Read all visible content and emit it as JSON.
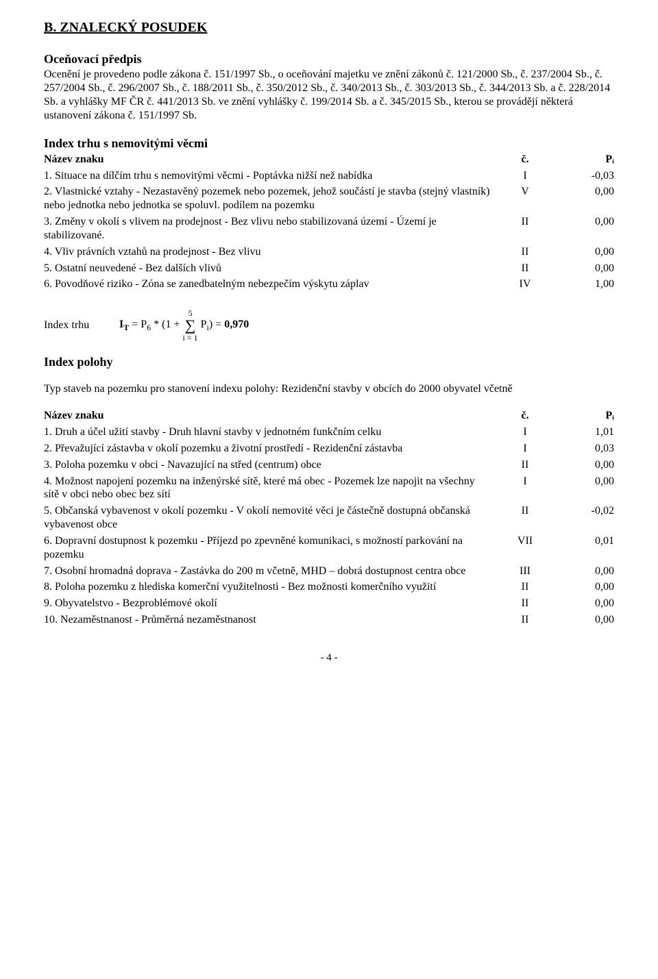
{
  "section_heading": "B. ZNALECKÝ POSUDEK",
  "pricing": {
    "title": "Oceňovací předpis",
    "text": "Ocenění je provedeno podle zákona č. 151/1997 Sb., o oceňování majetku ve znění zákonů č. 121/2000 Sb., č. 237/2004 Sb., č. 257/2004 Sb., č. 296/2007 Sb., č. 188/2011 Sb., č. 350/2012 Sb., č. 340/2013 Sb., č. 303/2013 Sb., č. 344/2013 Sb. a č. 228/2014 Sb. a vyhlášky MF ČR č. 441/2013 Sb. ve znění vyhlášky č. 199/2014 Sb. a č. 345/2015 Sb., kterou se provádějí některá ustanovení zákona č. 151/1997 Sb."
  },
  "index_trhu": {
    "title": "Index trhu s nemovitými věcmi",
    "header": {
      "name": "Název znaku",
      "col_c": "č.",
      "col_p": "Pᵢ"
    },
    "rows": [
      {
        "num": "1.",
        "text": "Situace na dílčím trhu s nemovitými věcmi - Poptávka nižší než nabídka",
        "indent": "nabídka",
        "c": "I",
        "p": "-0,03"
      },
      {
        "num": "2.",
        "text": "Vlastnické vztahy - Nezastavěný pozemek nebo pozemek, jehož součástí je stavba (stejný vlastník) nebo jednotka nebo jednotka se spoluvl. podílem na pozemku",
        "c": "V",
        "p": "0,00"
      },
      {
        "num": "3.",
        "text": "Změny v okolí s vlivem na prodejnost - Bez vlivu nebo stabilizovaná území - Území je stabilizované.",
        "c": "II",
        "p": "0,00"
      },
      {
        "num": "4.",
        "text": "Vliv právních vztahů na prodejnost - Bez vlivu",
        "c": "II",
        "p": "0,00"
      },
      {
        "num": "5.",
        "text": "Ostatní neuvedené - Bez dalších vlivů",
        "c": "II",
        "p": "0,00"
      },
      {
        "num": "6.",
        "text": "Povodňové riziko - Zóna se zanedbatelným nebezpečím výskytu záplav",
        "c": "IV",
        "p": "1,00"
      }
    ]
  },
  "formula": {
    "label": "Index trhu",
    "prefix": "Iᴛ = P₆ * (1 + ",
    "sum_top": "5",
    "sum_bot": "i = 1",
    "suffix_before_bold": " Pᵢ) = ",
    "result": "0,970"
  },
  "index_polohy": {
    "title": "Index polohy",
    "intro": "Typ staveb na pozemku pro stanovení indexu polohy: Rezidenční stavby v obcích do 2000 obyvatel včetně",
    "header": {
      "name": "Název znaku",
      "col_c": "č.",
      "col_p": "Pᵢ"
    },
    "rows": [
      {
        "num": "1.",
        "text": "Druh a účel užití stavby - Druh hlavní stavby v jednotném funkčním celku",
        "c": "I",
        "p": "1,01"
      },
      {
        "num": "2.",
        "text": "Převažující zástavba v okolí pozemku a životní prostředí - Rezidenční zástavba",
        "c": "I",
        "p": "0,03"
      },
      {
        "num": "3.",
        "text": "Poloha pozemku v obci - Navazující na střed (centrum) obce",
        "c": "II",
        "p": "0,00"
      },
      {
        "num": "4.",
        "text": "Možnost napojení pozemku na inženýrské sítě, které má obec - Pozemek lze napojit na všechny sítě v obci nebo obec bez sítí",
        "c": "I",
        "p": "0,00"
      },
      {
        "num": "5.",
        "text": "Občanská vybavenost v okolí pozemku - V okolí nemovité věci je částečně dostupná občanská vybavenost obce",
        "c": "II",
        "p": "-0,02"
      },
      {
        "num": "6.",
        "text": "Dopravní dostupnost k pozemku - Příjezd po zpevněné komunikaci, s možností parkování na pozemku",
        "c": "VII",
        "p": "0,01"
      },
      {
        "num": "7.",
        "text": "Osobní hromadná doprava - Zastávka do 200 m včetně, MHD – dobrá dostupnost centra obce",
        "c": "III",
        "p": "0,00"
      },
      {
        "num": "8.",
        "text": "Poloha pozemku z hlediska komerční využitelnosti - Bez možnosti komerčního využití",
        "c": "II",
        "p": "0,00"
      },
      {
        "num": "9.",
        "text": "Obyvatelstvo - Bezproblémové okolí",
        "c": "II",
        "p": "0,00"
      },
      {
        "num": "10.",
        "text": "Nezaměstnanost - Průměrná nezaměstnanost",
        "c": "II",
        "p": "0,00"
      }
    ]
  },
  "page_footer": "- 4 -"
}
